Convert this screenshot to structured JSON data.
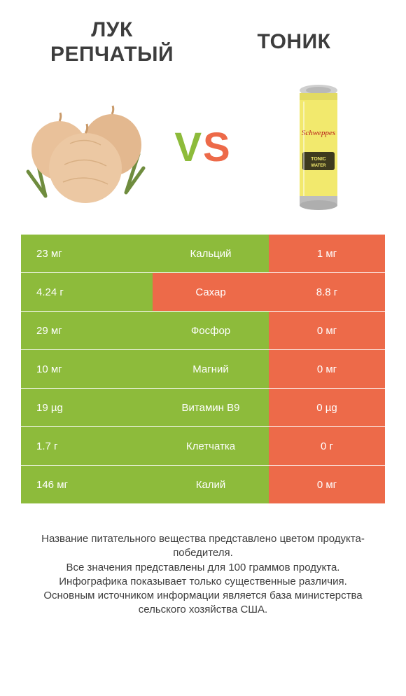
{
  "colors": {
    "green": "#8dbb3b",
    "orange": "#ed6a49",
    "text": "#3d3d3d",
    "white": "#ffffff",
    "onion_body": "#e9c19a",
    "onion_dark": "#c99a6a",
    "onion_green": "#6f8c3e",
    "can_body": "#f2e96d",
    "can_top": "#cfcfcf",
    "can_label": "#b59a4f"
  },
  "product_left": {
    "title": "Лук репчатый"
  },
  "product_right": {
    "title": "Тоник"
  },
  "vs": {
    "v": "V",
    "s": "S"
  },
  "nutrients": [
    {
      "label": "Кальций",
      "left": "23 мг",
      "right": "1 мг",
      "winner": "left"
    },
    {
      "label": "Сахар",
      "left": "4.24 г",
      "right": "8.8 г",
      "winner": "right"
    },
    {
      "label": "Фосфор",
      "left": "29 мг",
      "right": "0 мг",
      "winner": "left"
    },
    {
      "label": "Магний",
      "left": "10 мг",
      "right": "0 мг",
      "winner": "left"
    },
    {
      "label": "Витамин B9",
      "left": "19 µg",
      "right": "0 µg",
      "winner": "left"
    },
    {
      "label": "Клетчатка",
      "left": "1.7 г",
      "right": "0 г",
      "winner": "left"
    },
    {
      "label": "Калий",
      "left": "146 мг",
      "right": "0 мг",
      "winner": "left"
    }
  ],
  "footnote": "Название питательного вещества представлено цветом продукта-победителя.\nВсе значения представлены для 100 граммов продукта.\nИнфографика показывает только существенные различия.\nОсновным источником информации является база министерства сельского хозяйства США."
}
